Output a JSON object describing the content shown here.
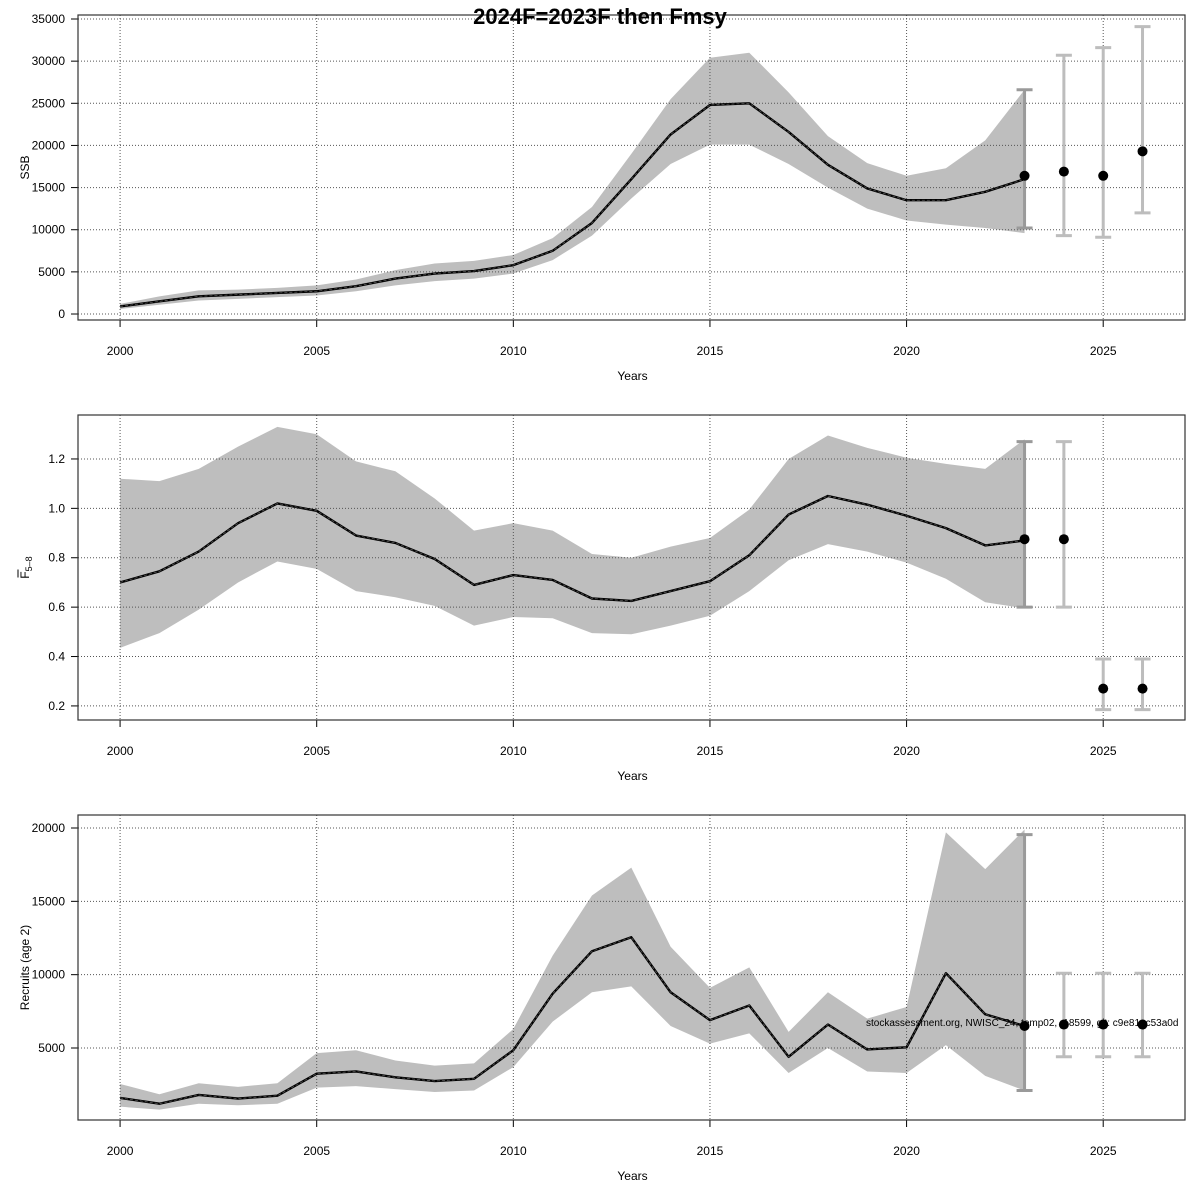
{
  "title": "2024F=2023F then Fmsy",
  "watermark": "stockassessment.org, NWISC_24, temp02, r18599, git: c9e81ac53a0d",
  "colors": {
    "band": "#bebebe",
    "line": "#000000",
    "errorbar": "#bdbdbd",
    "errorbar_last": "#9a9a9a",
    "point": "#000000",
    "grid": "#555555"
  },
  "chart_data": [
    {
      "type": "line",
      "ylabel": "SSB",
      "xlabel": "Years",
      "grid": true,
      "xlim": [
        1998.93,
        2027.08
      ],
      "ylim": [
        -710,
        35475
      ],
      "xticks": [
        2000,
        2005,
        2010,
        2015,
        2020,
        2025
      ],
      "yticks": [
        0,
        5000,
        10000,
        15000,
        20000,
        25000,
        30000,
        35000
      ],
      "ytick_labels": [
        "0",
        "5000",
        "10000",
        "15000",
        "20000",
        "25000",
        "30000",
        "35000"
      ],
      "years": [
        2000,
        2001,
        2002,
        2003,
        2004,
        2005,
        2006,
        2007,
        2008,
        2009,
        2010,
        2011,
        2012,
        2013,
        2014,
        2015,
        2016,
        2017,
        2018,
        2019,
        2020,
        2021,
        2022,
        2023
      ],
      "estimate": [
        900,
        1500,
        2100,
        2300,
        2500,
        2700,
        3300,
        4200,
        4800,
        5100,
        5800,
        7500,
        10800,
        16000,
        21300,
        24800,
        25000,
        21600,
        17700,
        14900,
        13500,
        13500,
        14500,
        16000
      ],
      "upper": [
        1200,
        2100,
        2800,
        2900,
        3100,
        3400,
        4100,
        5200,
        6000,
        6300,
        7000,
        9000,
        12700,
        19000,
        25500,
        30400,
        31000,
        26300,
        21100,
        17900,
        16400,
        17300,
        20600,
        26600
      ],
      "lower": [
        600,
        1100,
        1600,
        1800,
        2000,
        2200,
        2700,
        3400,
        3900,
        4200,
        4800,
        6400,
        9300,
        13700,
        17800,
        20100,
        20100,
        17800,
        15000,
        12500,
        11100,
        10600,
        10200,
        9600
      ],
      "forecast": [
        {
          "year": 2023,
          "value": 16400,
          "low": 10200,
          "high": 26600
        },
        {
          "year": 2024,
          "value": 16900,
          "low": 9300,
          "high": 30700
        },
        {
          "year": 2025,
          "value": 16400,
          "low": 9100,
          "high": 31600
        },
        {
          "year": 2026,
          "value": 19300,
          "low": 12000,
          "high": 34100
        }
      ]
    },
    {
      "type": "line",
      "ylabel": "F",
      "ylabel_sub": "5–8",
      "xlabel": "Years",
      "grid": true,
      "xlim": [
        1998.93,
        2027.08
      ],
      "ylim": [
        0.143,
        1.378
      ],
      "xticks": [
        2000,
        2005,
        2010,
        2015,
        2020,
        2025
      ],
      "yticks": [
        0.2,
        0.4,
        0.6,
        0.8,
        1.0,
        1.2
      ],
      "ytick_labels": [
        "0.2",
        "0.4",
        "0.6",
        "0.8",
        "1.0",
        "1.2"
      ],
      "years": [
        2000,
        2001,
        2002,
        2003,
        2004,
        2005,
        2006,
        2007,
        2008,
        2009,
        2010,
        2011,
        2012,
        2013,
        2014,
        2015,
        2016,
        2017,
        2018,
        2019,
        2020,
        2021,
        2022,
        2023
      ],
      "estimate": [
        0.7,
        0.745,
        0.825,
        0.94,
        1.02,
        0.99,
        0.89,
        0.86,
        0.795,
        0.69,
        0.73,
        0.71,
        0.635,
        0.625,
        0.665,
        0.705,
        0.81,
        0.975,
        1.05,
        1.015,
        0.97,
        0.92,
        0.85,
        0.87
      ],
      "upper": [
        1.12,
        1.11,
        1.16,
        1.25,
        1.33,
        1.3,
        1.19,
        1.15,
        1.04,
        0.91,
        0.94,
        0.91,
        0.815,
        0.8,
        0.845,
        0.88,
        0.995,
        1.2,
        1.295,
        1.245,
        1.205,
        1.18,
        1.16,
        1.28
      ],
      "lower": [
        0.435,
        0.495,
        0.59,
        0.7,
        0.785,
        0.755,
        0.665,
        0.64,
        0.605,
        0.525,
        0.56,
        0.555,
        0.495,
        0.49,
        0.525,
        0.565,
        0.665,
        0.79,
        0.855,
        0.825,
        0.78,
        0.715,
        0.62,
        0.595
      ],
      "forecast": [
        {
          "year": 2023,
          "value": 0.875,
          "low": 0.6,
          "high": 1.27
        },
        {
          "year": 2024,
          "value": 0.875,
          "low": 0.6,
          "high": 1.27
        },
        {
          "year": 2025,
          "value": 0.27,
          "low": 0.185,
          "high": 0.39
        },
        {
          "year": 2026,
          "value": 0.27,
          "low": 0.185,
          "high": 0.39
        }
      ]
    },
    {
      "type": "line",
      "ylabel": "Recruits (age 2)",
      "xlabel": "Years",
      "grid": true,
      "xlim": [
        1998.93,
        2027.08
      ],
      "ylim": [
        92,
        20886
      ],
      "xticks": [
        2000,
        2005,
        2010,
        2015,
        2020,
        2025
      ],
      "yticks": [
        5000,
        10000,
        15000,
        20000
      ],
      "ytick_labels": [
        "5000",
        "10000",
        "15000",
        "20000"
      ],
      "years": [
        2000,
        2001,
        2002,
        2003,
        2004,
        2005,
        2006,
        2007,
        2008,
        2009,
        2010,
        2011,
        2012,
        2013,
        2014,
        2015,
        2016,
        2017,
        2018,
        2019,
        2020,
        2021,
        2022,
        2023
      ],
      "estimate": [
        1600,
        1200,
        1800,
        1550,
        1750,
        3250,
        3400,
        3000,
        2750,
        2900,
        4850,
        8700,
        11600,
        12550,
        8800,
        6900,
        7900,
        4400,
        6600,
        4900,
        5050,
        10100,
        7300,
        6500
      ],
      "upper": [
        2550,
        1850,
        2600,
        2350,
        2600,
        4650,
        4850,
        4150,
        3800,
        3950,
        6300,
        11300,
        15400,
        17300,
        11900,
        9100,
        10500,
        6100,
        8800,
        7000,
        7800,
        19700,
        17200,
        19900
      ],
      "lower": [
        1000,
        800,
        1200,
        1100,
        1200,
        2300,
        2400,
        2200,
        2000,
        2100,
        3700,
        6800,
        8800,
        9200,
        6500,
        5300,
        6000,
        3300,
        5000,
        3400,
        3300,
        5200,
        3100,
        2100
      ],
      "forecast": [
        {
          "year": 2023,
          "value": 6500,
          "low": 2100,
          "high": 19550
        },
        {
          "year": 2024,
          "value": 6600,
          "low": 4400,
          "high": 10100
        },
        {
          "year": 2025,
          "value": 6600,
          "low": 4400,
          "high": 10100
        },
        {
          "year": 2026,
          "value": 6600,
          "low": 4400,
          "high": 10100
        }
      ]
    }
  ]
}
